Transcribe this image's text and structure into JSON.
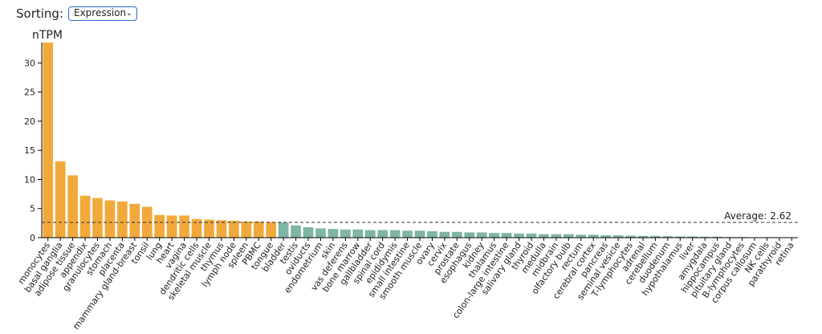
{
  "controls": {
    "sorting_label": "Sorting:",
    "sorting_value": "Expression",
    "chevron_icon": "chevron-down-icon"
  },
  "colors": {
    "enriched": "#f2a93b",
    "other": "#7fb5a4",
    "average_line": "#333333",
    "axis": "#000000"
  },
  "chart_data": {
    "type": "bar",
    "ylabel": "nTPM",
    "ylim": [
      0,
      33.5
    ],
    "yticks": [
      0,
      5,
      10,
      15,
      20,
      25,
      30
    ],
    "average": {
      "label": "Average: 2.62",
      "value": 2.62
    },
    "enriched_count": 19,
    "categories": [
      "monocytes",
      "basal ganglia",
      "adipose tissue",
      "appendix",
      "granulocytes",
      "stomach",
      "placenta",
      "mammary gland-breast",
      "tonsil",
      "lung",
      "heart",
      "vagina",
      "dendritic cells",
      "skeletal muscle",
      "thymus",
      "lymph node",
      "spleen",
      "PBMC",
      "tongue",
      "bladder",
      "testis",
      "oviducts",
      "endometrium",
      "skin",
      "vas deferens",
      "bone marrow",
      "gallbladder",
      "spinal cord",
      "epididymis",
      "small intestine",
      "smooth muscle",
      "ovary",
      "cervix",
      "prostate",
      "esophagus",
      "kidney",
      "thalamus",
      "colon-large intestine",
      "salivary gland",
      "thyroid",
      "medulla",
      "midbrain",
      "olfactory bulb",
      "rectum",
      "cerebral cortex",
      "pancreas",
      "seminal vesicle",
      "T-lymphocytes",
      "adrenal",
      "cerebellum",
      "duodenum",
      "hypothalamus",
      "liver",
      "amygdala",
      "hippocampus",
      "pituitary gland",
      "B-lymphocytes",
      "corpus callosum",
      "NK cells",
      "parathyroid",
      "retina"
    ],
    "values": [
      33.5,
      13.1,
      10.7,
      7.2,
      6.8,
      6.4,
      6.2,
      5.8,
      5.3,
      3.9,
      3.8,
      3.8,
      3.2,
      3.1,
      3.0,
      2.9,
      2.8,
      2.8,
      2.7,
      2.6,
      2.1,
      1.8,
      1.6,
      1.5,
      1.4,
      1.4,
      1.3,
      1.3,
      1.3,
      1.2,
      1.2,
      1.1,
      1.0,
      1.0,
      0.9,
      0.9,
      0.8,
      0.8,
      0.7,
      0.7,
      0.6,
      0.6,
      0.6,
      0.5,
      0.5,
      0.4,
      0.4,
      0.35,
      0.3,
      0.3,
      0.25,
      0.2,
      0.2,
      0.15,
      0.15,
      0.1,
      0.1,
      0.05,
      0.05,
      0.0,
      0.0
    ]
  }
}
